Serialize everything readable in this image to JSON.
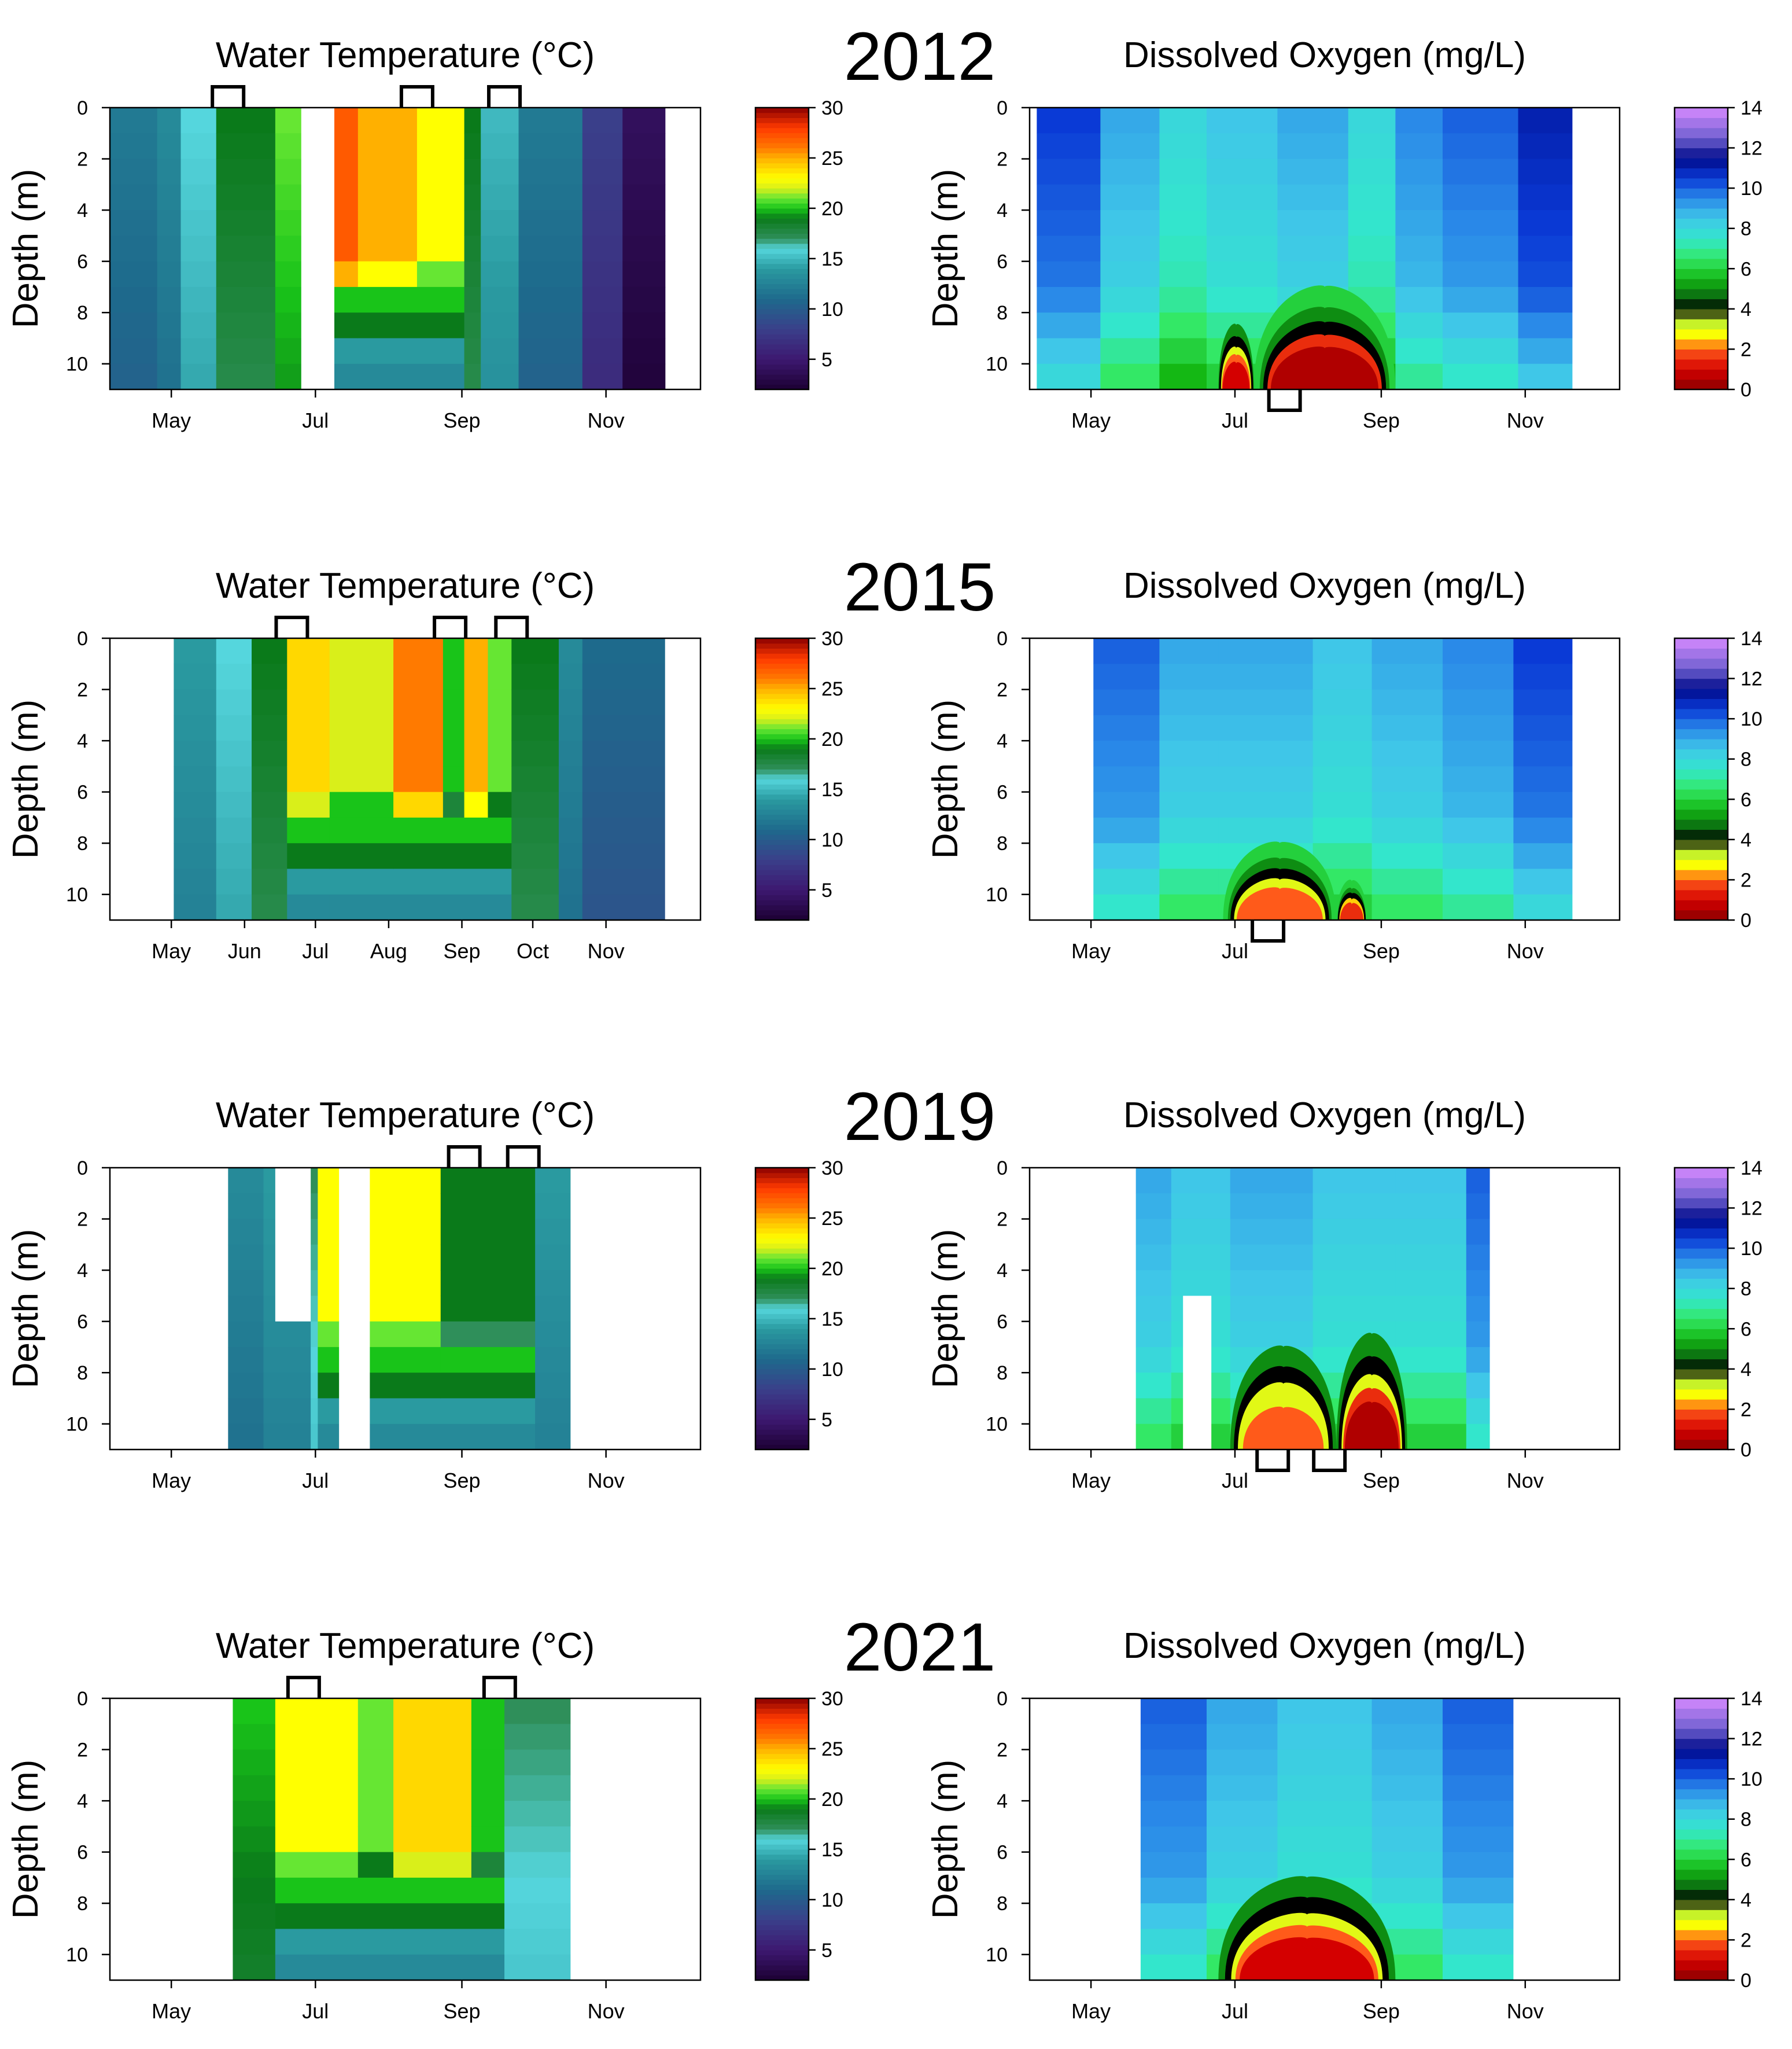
{
  "figure": {
    "years": [
      "2012",
      "2015",
      "2019",
      "2021"
    ],
    "temperature_title": "Water Temperature (°C)",
    "oxygen_title": "Dissolved Oxygen (mg/L)",
    "ylabel": "Depth (m)",
    "temperature_colorbar_ticks": [
      "30",
      "25",
      "20",
      "15",
      "10",
      "5"
    ],
    "oxygen_colorbar_ticks": [
      "14",
      "12",
      "10",
      "8",
      "6",
      "4",
      "2",
      "0"
    ],
    "depth_ticks": [
      "0",
      "2",
      "4",
      "6",
      "8",
      "10"
    ]
  },
  "chart_data": [
    {
      "type": "heatmap",
      "year": "2012",
      "variable": "Water Temperature (°C)",
      "xlabel": "",
      "ylabel": "Depth (m)",
      "ylim": [
        11,
        0
      ],
      "zlim": [
        2,
        30
      ],
      "x_ticks": [
        "May",
        "Jul",
        "Sep",
        "Nov"
      ],
      "day_range": [
        95,
        342
      ],
      "bands": [
        [
          95,
          115,
          12
        ],
        [
          115,
          125,
          13
        ],
        [
          125,
          140,
          16
        ],
        [
          140,
          165,
          19
        ],
        [
          165,
          178,
          21
        ],
        [
          190,
          200,
          27
        ],
        [
          200,
          225,
          25
        ],
        [
          225,
          245,
          23
        ],
        [
          245,
          252,
          19
        ],
        [
          252,
          268,
          15
        ],
        [
          268,
          295,
          12
        ],
        [
          295,
          312,
          8
        ],
        [
          312,
          330,
          4
        ]
      ],
      "gaps": [
        [
          176,
          190
        ]
      ],
      "stratified": [
        190,
        245
      ],
      "markers": [
        {
          "day": 145,
          "side": "top"
        },
        {
          "day": 225,
          "side": "top"
        },
        {
          "day": 262,
          "side": "top"
        }
      ]
    },
    {
      "type": "heatmap",
      "year": "2012",
      "variable": "Dissolved Oxygen (mg/L)",
      "xlabel": "",
      "ylabel": "Depth (m)",
      "ylim": [
        11,
        0
      ],
      "zlim": [
        0,
        14
      ],
      "x_ticks": [
        "May",
        "Jul",
        "Sep",
        "Nov"
      ],
      "day_range": [
        98,
        325
      ],
      "bands": [
        [
          98,
          125,
          10.5
        ],
        [
          125,
          150,
          9
        ],
        [
          150,
          170,
          8
        ],
        [
          170,
          200,
          8.5
        ],
        [
          200,
          230,
          9
        ],
        [
          230,
          250,
          8
        ],
        [
          250,
          270,
          9.5
        ],
        [
          270,
          302,
          10
        ],
        [
          302,
          325,
          11
        ]
      ],
      "anoxic": [
        [
          175,
          190,
          8.5,
          4,
          1
        ],
        [
          190,
          250,
          7,
          5,
          0.5
        ]
      ],
      "markers": [
        {
          "day": 203,
          "side": "bottom"
        }
      ]
    },
    {
      "type": "heatmap",
      "year": "2015",
      "variable": "Water Temperature (°C)",
      "xlabel": "",
      "ylabel": "Depth (m)",
      "ylim": [
        11,
        0
      ],
      "zlim": [
        2,
        30
      ],
      "x_ticks": [
        "May",
        "Jun",
        "Jul",
        "Aug",
        "Sep",
        "Oct",
        "Nov"
      ],
      "day_range": [
        122,
        330
      ],
      "bands": [
        [
          122,
          140,
          14
        ],
        [
          140,
          155,
          16
        ],
        [
          155,
          170,
          19
        ],
        [
          170,
          188,
          24
        ],
        [
          188,
          215,
          22
        ],
        [
          215,
          236,
          26
        ],
        [
          236,
          245,
          20
        ],
        [
          245,
          255,
          25
        ],
        [
          255,
          265,
          21
        ],
        [
          265,
          285,
          19
        ],
        [
          285,
          295,
          13
        ],
        [
          295,
          330,
          11
        ]
      ],
      "gaps": [],
      "stratified": [
        170,
        265
      ],
      "markers": [
        {
          "day": 172,
          "side": "top"
        },
        {
          "day": 239,
          "side": "top"
        },
        {
          "day": 265,
          "side": "top"
        }
      ]
    },
    {
      "type": "heatmap",
      "year": "2015",
      "variable": "Dissolved Oxygen (mg/L)",
      "xlabel": "",
      "ylabel": "Depth (m)",
      "ylim": [
        11,
        0
      ],
      "zlim": [
        0,
        14
      ],
      "x_ticks": [
        "May",
        "Jul",
        "Sep",
        "Nov"
      ],
      "day_range": [
        122,
        325
      ],
      "bands": [
        [
          122,
          150,
          10
        ],
        [
          150,
          175,
          9
        ],
        [
          175,
          215,
          9
        ],
        [
          215,
          240,
          8.5
        ],
        [
          240,
          270,
          9
        ],
        [
          270,
          300,
          9.5
        ],
        [
          300,
          325,
          10.5
        ]
      ],
      "anoxic": [
        [
          177,
          225,
          8,
          5,
          2
        ],
        [
          225,
          238,
          9.5,
          5,
          1.5
        ]
      ],
      "markers": [
        {
          "day": 196,
          "side": "bottom"
        }
      ]
    },
    {
      "type": "heatmap",
      "year": "2019",
      "variable": "Water Temperature (°C)",
      "xlabel": "",
      "ylabel": "Depth (m)",
      "ylim": [
        11,
        0
      ],
      "zlim": [
        2,
        30
      ],
      "x_ticks": [
        "May",
        "Jul",
        "Sep",
        "Nov"
      ],
      "day_range": [
        145,
        290
      ],
      "bands": [
        [
          145,
          160,
          13
        ],
        [
          160,
          180,
          14
        ],
        [
          180,
          183,
          17
        ],
        [
          183,
          192,
          23
        ],
        [
          205,
          235,
          23
        ],
        [
          235,
          275,
          19
        ],
        [
          275,
          290,
          14
        ]
      ],
      "gaps": [
        [
          165,
          180,
          0,
          6
        ],
        [
          192,
          205,
          0,
          11
        ]
      ],
      "stratified": [
        183,
        275
      ],
      "markers": [
        {
          "day": 245,
          "side": "top"
        },
        {
          "day": 270,
          "side": "top"
        }
      ]
    },
    {
      "type": "heatmap",
      "year": "2019",
      "variable": "Dissolved Oxygen (mg/L)",
      "xlabel": "",
      "ylabel": "Depth (m)",
      "ylim": [
        11,
        0
      ],
      "zlim": [
        0,
        14
      ],
      "x_ticks": [
        "May",
        "Jul",
        "Sep",
        "Nov"
      ],
      "day_range": [
        140,
        290
      ],
      "bands": [
        [
          140,
          155,
          9
        ],
        [
          155,
          180,
          8.5
        ],
        [
          180,
          215,
          9
        ],
        [
          215,
          250,
          8.5
        ],
        [
          250,
          280,
          8.5
        ],
        [
          280,
          290,
          10
        ]
      ],
      "anoxic": [
        [
          180,
          225,
          7,
          4,
          2
        ],
        [
          225,
          255,
          6.5,
          4,
          0.5
        ]
      ],
      "gaps": [
        [
          160,
          172,
          5,
          11
        ]
      ],
      "markers": [
        {
          "day": 198,
          "side": "bottom"
        },
        {
          "day": 222,
          "side": "bottom"
        }
      ]
    },
    {
      "type": "heatmap",
      "year": "2021",
      "variable": "Water Temperature (°C)",
      "xlabel": "",
      "ylabel": "Depth (m)",
      "ylim": [
        11,
        0
      ],
      "zlim": [
        2,
        30
      ],
      "x_ticks": [
        "May",
        "Jul",
        "Sep",
        "Nov"
      ],
      "day_range": [
        147,
        290
      ],
      "bands": [
        [
          147,
          165,
          20
        ],
        [
          165,
          200,
          23
        ],
        [
          200,
          215,
          21
        ],
        [
          215,
          248,
          24
        ],
        [
          248,
          262,
          20
        ],
        [
          262,
          290,
          17
        ]
      ],
      "gaps": [],
      "stratified": [
        165,
        262
      ],
      "markers": [
        {
          "day": 177,
          "side": "top"
        },
        {
          "day": 260,
          "side": "top"
        }
      ]
    },
    {
      "type": "heatmap",
      "year": "2021",
      "variable": "Dissolved Oxygen (mg/L)",
      "xlabel": "",
      "ylabel": "Depth (m)",
      "ylim": [
        11,
        0
      ],
      "zlim": [
        0,
        14
      ],
      "x_ticks": [
        "May",
        "Jul",
        "Sep",
        "Nov"
      ],
      "day_range": [
        142,
        300
      ],
      "bands": [
        [
          142,
          170,
          10
        ],
        [
          170,
          200,
          9
        ],
        [
          200,
          240,
          8.5
        ],
        [
          240,
          270,
          9
        ],
        [
          270,
          300,
          10
        ]
      ],
      "anoxic": [
        [
          175,
          250,
          7,
          4,
          1
        ]
      ],
      "markers": []
    }
  ]
}
